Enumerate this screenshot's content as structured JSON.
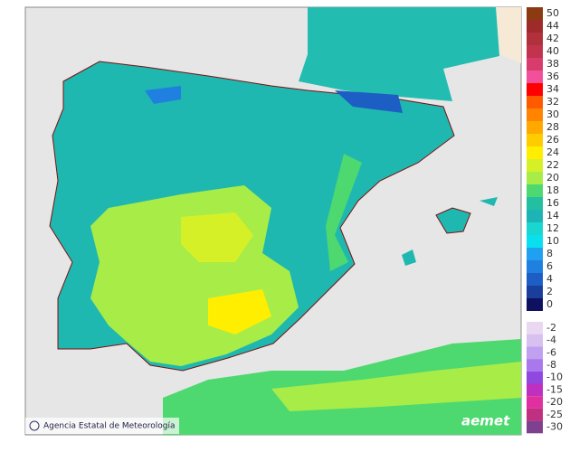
{
  "map": {
    "credit": "Agencia Estatal de Meteorología",
    "logo": "aemet"
  },
  "legend": {
    "positive": [
      {
        "value": 50,
        "color": "#8b3a12"
      },
      {
        "value": 44,
        "color": "#9e2a2a"
      },
      {
        "value": 42,
        "color": "#b0303c"
      },
      {
        "value": 40,
        "color": "#c2344e"
      },
      {
        "value": 38,
        "color": "#d83c6c"
      },
      {
        "value": 36,
        "color": "#f2509a"
      },
      {
        "value": 34,
        "color": "#ff0000"
      },
      {
        "value": 32,
        "color": "#ff5a00"
      },
      {
        "value": 30,
        "color": "#ff8400"
      },
      {
        "value": 28,
        "color": "#ffa800"
      },
      {
        "value": 26,
        "color": "#ffcc00"
      },
      {
        "value": 24,
        "color": "#ffee00"
      },
      {
        "value": 22,
        "color": "#d6f028"
      },
      {
        "value": 20,
        "color": "#a8ec48"
      },
      {
        "value": 18,
        "color": "#4ed870"
      },
      {
        "value": 16,
        "color": "#22c0a0"
      },
      {
        "value": 14,
        "color": "#1cb4b4"
      },
      {
        "value": 12,
        "color": "#1ad6d0"
      },
      {
        "value": 10,
        "color": "#08e0f0"
      },
      {
        "value": 8,
        "color": "#20a0f0"
      },
      {
        "value": 6,
        "color": "#2080e0"
      },
      {
        "value": 4,
        "color": "#1c5ec4"
      },
      {
        "value": 2,
        "color": "#1a3e9c"
      },
      {
        "value": 0,
        "color": "#101060"
      }
    ],
    "negative": [
      {
        "value": -2,
        "color": "#ead8f2"
      },
      {
        "value": -4,
        "color": "#d8c0f0"
      },
      {
        "value": -6,
        "color": "#c0a0f0"
      },
      {
        "value": -8,
        "color": "#a878ec"
      },
      {
        "value": -10,
        "color": "#9048e0"
      },
      {
        "value": -15,
        "color": "#c030c0"
      },
      {
        "value": -20,
        "color": "#e030a0"
      },
      {
        "value": -25,
        "color": "#c03080"
      },
      {
        "value": -30,
        "color": "#804090"
      }
    ]
  }
}
